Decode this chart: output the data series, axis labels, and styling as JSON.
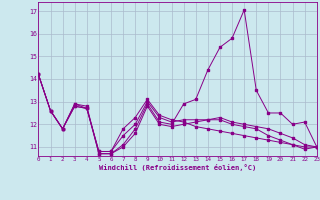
{
  "xlabel": "Windchill (Refroidissement éolien,°C)",
  "background_color": "#cce8ee",
  "line_color": "#880088",
  "grid_color": "#aabbcc",
  "xlim": [
    0,
    23
  ],
  "ylim": [
    10.6,
    17.4
  ],
  "yticks": [
    11,
    12,
    13,
    14,
    15,
    16,
    17
  ],
  "xticks": [
    0,
    1,
    2,
    3,
    4,
    5,
    6,
    7,
    8,
    9,
    10,
    11,
    12,
    13,
    14,
    15,
    16,
    17,
    18,
    19,
    20,
    21,
    22,
    23
  ],
  "series": [
    [
      14.2,
      12.6,
      11.8,
      12.9,
      12.8,
      10.7,
      10.7,
      11.1,
      11.8,
      12.9,
      12.1,
      12.0,
      12.9,
      13.1,
      14.4,
      15.4,
      15.8,
      17.05,
      13.5,
      12.5,
      12.5,
      12.0,
      12.1,
      11.0
    ],
    [
      14.2,
      12.6,
      11.8,
      12.8,
      12.7,
      10.8,
      10.8,
      11.5,
      12.0,
      13.0,
      12.3,
      12.1,
      12.2,
      12.2,
      12.2,
      12.2,
      12.0,
      11.9,
      11.8,
      11.5,
      11.3,
      11.1,
      10.9,
      11.0
    ],
    [
      14.2,
      12.6,
      11.8,
      12.8,
      12.7,
      10.8,
      10.8,
      11.8,
      12.3,
      13.1,
      12.4,
      12.2,
      12.1,
      11.9,
      11.8,
      11.7,
      11.6,
      11.5,
      11.4,
      11.3,
      11.2,
      11.1,
      11.0,
      11.0
    ],
    [
      14.2,
      12.6,
      11.8,
      12.9,
      12.7,
      10.7,
      10.7,
      11.0,
      11.6,
      12.8,
      12.0,
      11.9,
      12.0,
      12.1,
      12.2,
      12.3,
      12.1,
      12.0,
      11.9,
      11.8,
      11.6,
      11.4,
      11.1,
      11.0
    ]
  ]
}
